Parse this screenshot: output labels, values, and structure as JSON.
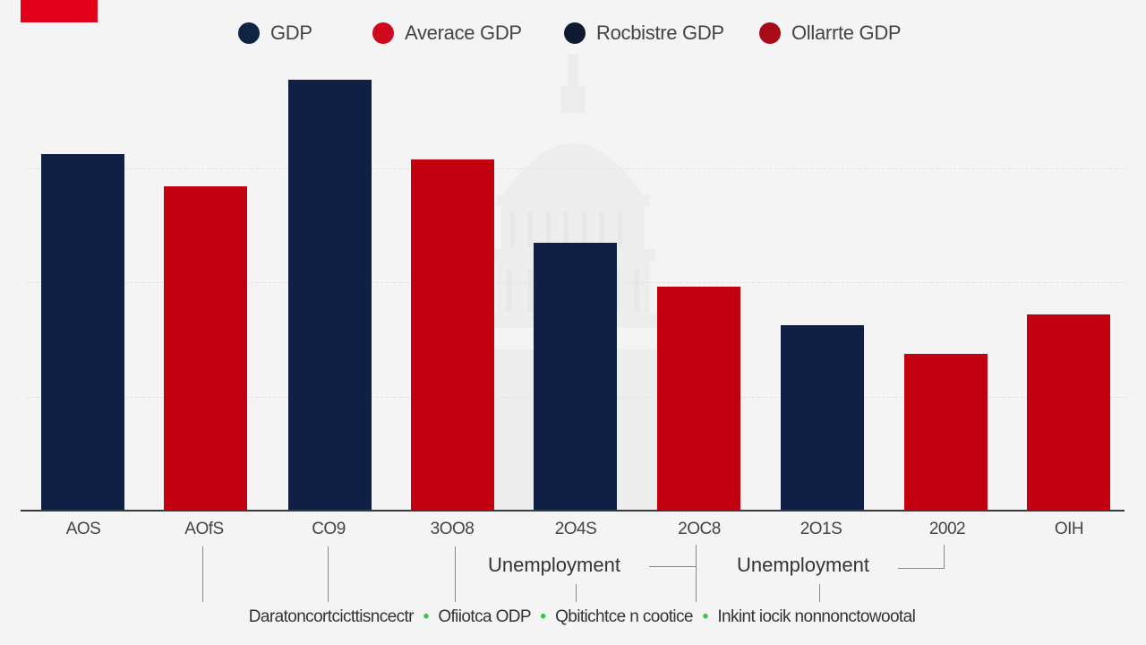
{
  "legend": {
    "items": [
      {
        "label": "GDP",
        "color": "#0f2444"
      },
      {
        "label": "Averace GDP",
        "color": "#d0091e"
      },
      {
        "label": "Rocbistre GDP",
        "color": "#0f1a30"
      },
      {
        "label": "Ollarrte GDP",
        "color": "#a80a18"
      }
    ]
  },
  "annotations": {
    "left": "Unemployment",
    "right": "Unemployment"
  },
  "footer": {
    "parts": [
      "Daratoncortcicttisncectr",
      "Ofiiotca ODP",
      "Qbitichtce n cootice",
      "Inkint iocik nonnonctowootal"
    ],
    "separator": "•"
  },
  "colors": {
    "navy": "#0f2044",
    "red": "#c30010",
    "accent_red": "#e2001a",
    "background": "#f4f4f4",
    "separator_green": "#2ecc40"
  },
  "chart_data": {
    "type": "bar",
    "title": "",
    "xlabel": "",
    "ylabel": "",
    "categories": [
      "AOS",
      "AOfS",
      "CO9",
      "3OO8",
      "2O4S",
      "2OC8",
      "2O1S",
      "2002",
      "OIH"
    ],
    "values": [
      398,
      362,
      481,
      392,
      299,
      250,
      207,
      175,
      219
    ],
    "bar_colors": [
      "#0f2044",
      "#c30010",
      "#0f2044",
      "#c30010",
      "#0f2044",
      "#c30010",
      "#0f2044",
      "#c30010",
      "#c30010"
    ],
    "legend": [
      "GDP",
      "Averace GDP",
      "Rocbistre GDP",
      "Ollarrte GDP"
    ],
    "legend_position": "top",
    "grid": true,
    "ylim": [
      0,
      500
    ],
    "annotations": [
      "Unemployment",
      "Unemployment"
    ],
    "note": "No y-axis tick labels are shown; values are relative bar heights in pixels."
  }
}
